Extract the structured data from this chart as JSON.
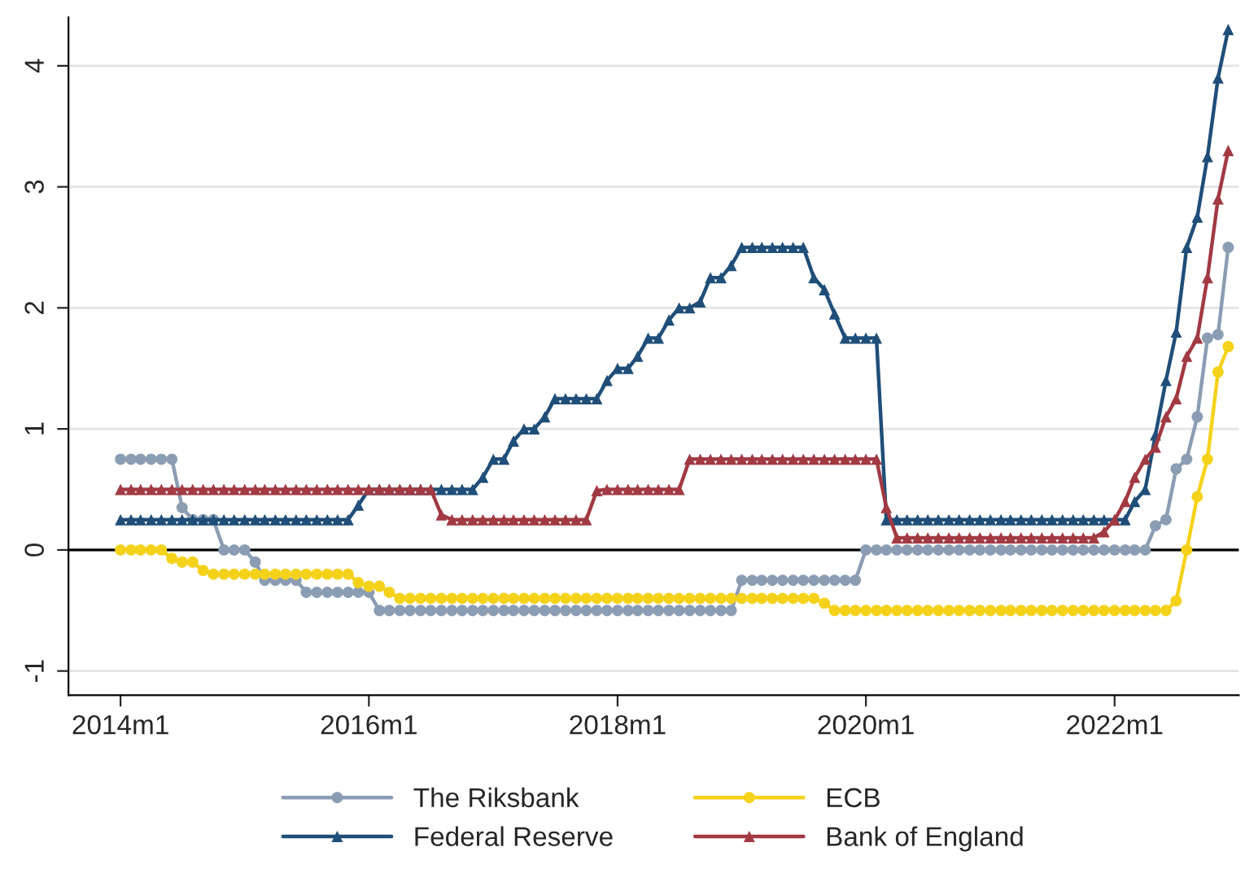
{
  "chart_data": {
    "type": "line",
    "x": [
      "2014-01",
      "2014-02",
      "2014-03",
      "2014-04",
      "2014-05",
      "2014-06",
      "2014-07",
      "2014-08",
      "2014-09",
      "2014-10",
      "2014-11",
      "2014-12",
      "2015-01",
      "2015-02",
      "2015-03",
      "2015-04",
      "2015-05",
      "2015-06",
      "2015-07",
      "2015-08",
      "2015-09",
      "2015-10",
      "2015-11",
      "2015-12",
      "2016-01",
      "2016-02",
      "2016-03",
      "2016-04",
      "2016-05",
      "2016-06",
      "2016-07",
      "2016-08",
      "2016-09",
      "2016-10",
      "2016-11",
      "2016-12",
      "2017-01",
      "2017-02",
      "2017-03",
      "2017-04",
      "2017-05",
      "2017-06",
      "2017-07",
      "2017-08",
      "2017-09",
      "2017-10",
      "2017-11",
      "2017-12",
      "2018-01",
      "2018-02",
      "2018-03",
      "2018-04",
      "2018-05",
      "2018-06",
      "2018-07",
      "2018-08",
      "2018-09",
      "2018-10",
      "2018-11",
      "2018-12",
      "2019-01",
      "2019-02",
      "2019-03",
      "2019-04",
      "2019-05",
      "2019-06",
      "2019-07",
      "2019-08",
      "2019-09",
      "2019-10",
      "2019-11",
      "2019-12",
      "2020-01",
      "2020-02",
      "2020-03",
      "2020-04",
      "2020-05",
      "2020-06",
      "2020-07",
      "2020-08",
      "2020-09",
      "2020-10",
      "2020-11",
      "2020-12",
      "2021-01",
      "2021-02",
      "2021-03",
      "2021-04",
      "2021-05",
      "2021-06",
      "2021-07",
      "2021-08",
      "2021-09",
      "2021-10",
      "2021-11",
      "2021-12",
      "2022-01",
      "2022-02",
      "2022-03",
      "2022-04",
      "2022-05",
      "2022-06",
      "2022-07",
      "2022-08",
      "2022-09",
      "2022-10",
      "2022-11",
      "2022-12"
    ],
    "series": [
      {
        "name": "The Riksbank",
        "color": "#8b9db3",
        "marker": "circle",
        "values": [
          0.75,
          0.75,
          0.75,
          0.75,
          0.75,
          0.75,
          0.35,
          0.25,
          0.25,
          0.25,
          0,
          0,
          0,
          -0.1,
          -0.25,
          -0.25,
          -0.25,
          -0.25,
          -0.35,
          -0.35,
          -0.35,
          -0.35,
          -0.35,
          -0.35,
          -0.35,
          -0.5,
          -0.5,
          -0.5,
          -0.5,
          -0.5,
          -0.5,
          -0.5,
          -0.5,
          -0.5,
          -0.5,
          -0.5,
          -0.5,
          -0.5,
          -0.5,
          -0.5,
          -0.5,
          -0.5,
          -0.5,
          -0.5,
          -0.5,
          -0.5,
          -0.5,
          -0.5,
          -0.5,
          -0.5,
          -0.5,
          -0.5,
          -0.5,
          -0.5,
          -0.5,
          -0.5,
          -0.5,
          -0.5,
          -0.5,
          -0.5,
          -0.25,
          -0.25,
          -0.25,
          -0.25,
          -0.25,
          -0.25,
          -0.25,
          -0.25,
          -0.25,
          -0.25,
          -0.25,
          -0.25,
          0,
          0,
          0,
          0,
          0,
          0,
          0,
          0,
          0,
          0,
          0,
          0,
          0,
          0,
          0,
          0,
          0,
          0,
          0,
          0,
          0,
          0,
          0,
          0,
          0,
          0,
          0,
          0,
          0.2,
          0.25,
          0.67,
          0.75,
          1.1,
          1.75,
          1.78,
          2.5
        ]
      },
      {
        "name": "Federal Reserve",
        "color": "#1f4e79",
        "marker": "triangle",
        "values": [
          0.25,
          0.25,
          0.25,
          0.25,
          0.25,
          0.25,
          0.25,
          0.25,
          0.25,
          0.25,
          0.25,
          0.25,
          0.25,
          0.25,
          0.25,
          0.25,
          0.25,
          0.25,
          0.25,
          0.25,
          0.25,
          0.25,
          0.25,
          0.37,
          0.5,
          0.5,
          0.5,
          0.5,
          0.5,
          0.5,
          0.5,
          0.5,
          0.5,
          0.5,
          0.5,
          0.6,
          0.75,
          0.75,
          0.9,
          1,
          1,
          1.1,
          1.25,
          1.25,
          1.25,
          1.25,
          1.25,
          1.4,
          1.5,
          1.5,
          1.6,
          1.75,
          1.75,
          1.9,
          2,
          2,
          2.05,
          2.25,
          2.25,
          2.35,
          2.5,
          2.5,
          2.5,
          2.5,
          2.5,
          2.5,
          2.5,
          2.25,
          2.15,
          1.95,
          1.75,
          1.75,
          1.75,
          1.75,
          0.25,
          0.25,
          0.25,
          0.25,
          0.25,
          0.25,
          0.25,
          0.25,
          0.25,
          0.25,
          0.25,
          0.25,
          0.25,
          0.25,
          0.25,
          0.25,
          0.25,
          0.25,
          0.25,
          0.25,
          0.25,
          0.25,
          0.25,
          0.25,
          0.4,
          0.5,
          0.95,
          1.4,
          1.8,
          2.5,
          2.75,
          3.25,
          3.9,
          4.3
        ]
      },
      {
        "name": "ECB",
        "color": "#f5d21a",
        "marker": "circle",
        "values": [
          0,
          0,
          0,
          0,
          0,
          -0.07,
          -0.1,
          -0.1,
          -0.17,
          -0.2,
          -0.2,
          -0.2,
          -0.2,
          -0.2,
          -0.2,
          -0.2,
          -0.2,
          -0.2,
          -0.2,
          -0.2,
          -0.2,
          -0.2,
          -0.2,
          -0.27,
          -0.3,
          -0.3,
          -0.35,
          -0.4,
          -0.4,
          -0.4,
          -0.4,
          -0.4,
          -0.4,
          -0.4,
          -0.4,
          -0.4,
          -0.4,
          -0.4,
          -0.4,
          -0.4,
          -0.4,
          -0.4,
          -0.4,
          -0.4,
          -0.4,
          -0.4,
          -0.4,
          -0.4,
          -0.4,
          -0.4,
          -0.4,
          -0.4,
          -0.4,
          -0.4,
          -0.4,
          -0.4,
          -0.4,
          -0.4,
          -0.4,
          -0.4,
          -0.4,
          -0.4,
          -0.4,
          -0.4,
          -0.4,
          -0.4,
          -0.4,
          -0.4,
          -0.44,
          -0.5,
          -0.5,
          -0.5,
          -0.5,
          -0.5,
          -0.5,
          -0.5,
          -0.5,
          -0.5,
          -0.5,
          -0.5,
          -0.5,
          -0.5,
          -0.5,
          -0.5,
          -0.5,
          -0.5,
          -0.5,
          -0.5,
          -0.5,
          -0.5,
          -0.5,
          -0.5,
          -0.5,
          -0.5,
          -0.5,
          -0.5,
          -0.5,
          -0.5,
          -0.5,
          -0.5,
          -0.5,
          -0.5,
          -0.42,
          0,
          0.44,
          0.75,
          1.47,
          1.68
        ]
      },
      {
        "name": "Bank of England",
        "color": "#a23a43",
        "marker": "triangle",
        "values": [
          0.5,
          0.5,
          0.5,
          0.5,
          0.5,
          0.5,
          0.5,
          0.5,
          0.5,
          0.5,
          0.5,
          0.5,
          0.5,
          0.5,
          0.5,
          0.5,
          0.5,
          0.5,
          0.5,
          0.5,
          0.5,
          0.5,
          0.5,
          0.5,
          0.5,
          0.5,
          0.5,
          0.5,
          0.5,
          0.5,
          0.5,
          0.29,
          0.25,
          0.25,
          0.25,
          0.25,
          0.25,
          0.25,
          0.25,
          0.25,
          0.25,
          0.25,
          0.25,
          0.25,
          0.25,
          0.25,
          0.49,
          0.5,
          0.5,
          0.5,
          0.5,
          0.5,
          0.5,
          0.5,
          0.5,
          0.75,
          0.75,
          0.75,
          0.75,
          0.75,
          0.75,
          0.75,
          0.75,
          0.75,
          0.75,
          0.75,
          0.75,
          0.75,
          0.75,
          0.75,
          0.75,
          0.75,
          0.75,
          0.75,
          0.35,
          0.1,
          0.1,
          0.1,
          0.1,
          0.1,
          0.1,
          0.1,
          0.1,
          0.1,
          0.1,
          0.1,
          0.1,
          0.1,
          0.1,
          0.1,
          0.1,
          0.1,
          0.1,
          0.1,
          0.1,
          0.15,
          0.25,
          0.4,
          0.6,
          0.75,
          0.85,
          1.1,
          1.25,
          1.6,
          1.75,
          2.25,
          2.9,
          3.3
        ]
      }
    ],
    "xlim": [
      "2013-08",
      "2023-01"
    ],
    "xticks": [
      {
        "value": "2014-01",
        "label": "2014m1"
      },
      {
        "value": "2016-01",
        "label": "2016m1"
      },
      {
        "value": "2018-01",
        "label": "2018m1"
      },
      {
        "value": "2020-01",
        "label": "2020m1"
      },
      {
        "value": "2022-01",
        "label": "2022m1"
      }
    ],
    "ylim": [
      -1.2,
      4.4
    ],
    "yticks": [
      -1,
      0,
      1,
      2,
      3,
      4
    ],
    "ref_lines": [
      {
        "axis": "y",
        "value": 0,
        "color": "#000000"
      }
    ],
    "grid": "y",
    "legend": "bottom",
    "line_style": "solid"
  }
}
